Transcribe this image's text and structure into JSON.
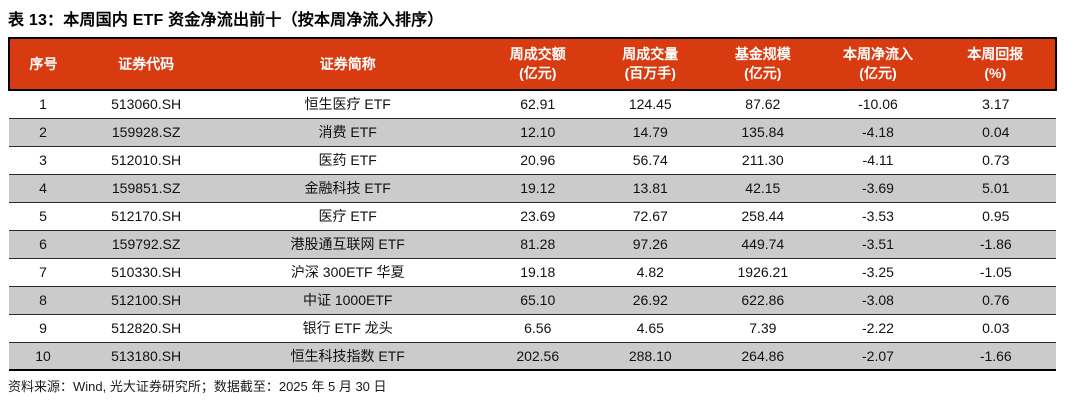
{
  "title": "表 13：本周国内 ETF 资金净流出前十（按本周净流入排序）",
  "table": {
    "columns": [
      {
        "label": "序号",
        "unit": ""
      },
      {
        "label": "证券代码",
        "unit": ""
      },
      {
        "label": "证券简称",
        "unit": ""
      },
      {
        "label": "周成交额",
        "unit": "(亿元)"
      },
      {
        "label": "周成交量",
        "unit": "(百万手)"
      },
      {
        "label": "基金规模",
        "unit": "(亿元)"
      },
      {
        "label": "本周净流入",
        "unit": "(亿元)"
      },
      {
        "label": "本周回报",
        "unit": "(%)"
      }
    ],
    "rows": [
      [
        "1",
        "513060.SH",
        "恒生医疗 ETF",
        "62.91",
        "124.45",
        "87.62",
        "-10.06",
        "3.17"
      ],
      [
        "2",
        "159928.SZ",
        "消费 ETF",
        "12.10",
        "14.79",
        "135.84",
        "-4.18",
        "0.04"
      ],
      [
        "3",
        "512010.SH",
        "医药 ETF",
        "20.96",
        "56.74",
        "211.30",
        "-4.11",
        "0.73"
      ],
      [
        "4",
        "159851.SZ",
        "金融科技 ETF",
        "19.12",
        "13.81",
        "42.15",
        "-3.69",
        "5.01"
      ],
      [
        "5",
        "512170.SH",
        "医疗 ETF",
        "23.69",
        "72.67",
        "258.44",
        "-3.53",
        "0.95"
      ],
      [
        "6",
        "159792.SZ",
        "港股通互联网 ETF",
        "81.28",
        "97.26",
        "449.74",
        "-3.51",
        "-1.86"
      ],
      [
        "7",
        "510330.SH",
        "沪深 300ETF 华夏",
        "19.18",
        "4.82",
        "1926.21",
        "-3.25",
        "-1.05"
      ],
      [
        "8",
        "512100.SH",
        "中证 1000ETF",
        "65.10",
        "26.92",
        "622.86",
        "-3.08",
        "0.76"
      ],
      [
        "9",
        "512820.SH",
        "银行 ETF 龙头",
        "6.56",
        "4.65",
        "7.39",
        "-2.22",
        "0.03"
      ],
      [
        "10",
        "513180.SH",
        "恒生科技指数 ETF",
        "202.56",
        "288.10",
        "264.86",
        "-2.07",
        "-1.66"
      ]
    ]
  },
  "footer": {
    "source_text": "资料来源：Wind, 光大证券研究所；数据截至：2025 年 5 月 30 日"
  },
  "colors": {
    "header_bg": "#D93B10",
    "header_text": "#FFFFFF",
    "alt_row_bg": "#CBCBCB",
    "border": "#000000"
  }
}
